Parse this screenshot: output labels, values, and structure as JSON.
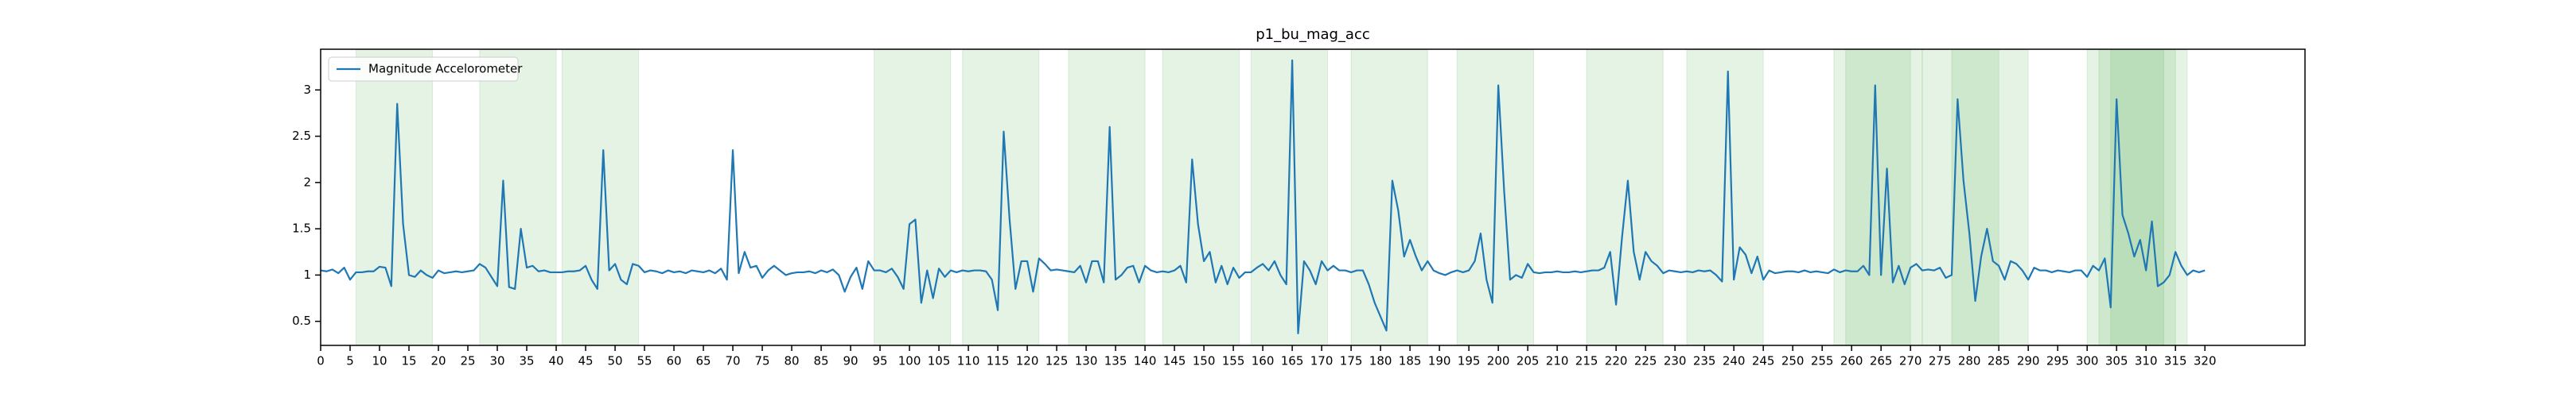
{
  "chart_data": {
    "type": "line",
    "title": "p1_bu_mag_acc",
    "x": [
      0,
      1,
      2,
      3,
      4,
      5,
      6,
      7,
      8,
      9,
      10,
      11,
      12,
      13,
      14,
      15,
      16,
      17,
      18,
      19,
      20,
      21,
      22,
      23,
      24,
      25,
      26,
      27,
      28,
      29,
      30,
      31,
      32,
      33,
      34,
      35,
      36,
      37,
      38,
      39,
      40,
      41,
      42,
      43,
      44,
      45,
      46,
      47,
      48,
      49,
      50,
      51,
      52,
      53,
      54,
      55,
      56,
      57,
      58,
      59,
      60,
      61,
      62,
      63,
      64,
      65,
      66,
      67,
      68,
      69,
      70,
      71,
      72,
      73,
      74,
      75,
      76,
      77,
      78,
      79,
      80,
      81,
      82,
      83,
      84,
      85,
      86,
      87,
      88,
      89,
      90,
      91,
      92,
      93,
      94,
      95,
      96,
      97,
      98,
      99,
      100,
      101,
      102,
      103,
      104,
      105,
      106,
      107,
      108,
      109,
      110,
      111,
      112,
      113,
      114,
      115,
      116,
      117,
      118,
      119,
      120,
      121,
      122,
      123,
      124,
      125,
      126,
      127,
      128,
      129,
      130,
      131,
      132,
      133,
      134,
      135,
      136,
      137,
      138,
      139,
      140,
      141,
      142,
      143,
      144,
      145,
      146,
      147,
      148,
      149,
      150,
      151,
      152,
      153,
      154,
      155,
      156,
      157,
      158,
      159,
      160,
      161,
      162,
      163,
      164,
      165,
      166,
      167,
      168,
      169,
      170,
      171,
      172,
      173,
      174,
      175,
      176,
      177,
      178,
      179,
      180,
      181,
      182,
      183,
      184,
      185,
      186,
      187,
      188,
      189,
      190,
      191,
      192,
      193,
      194,
      195,
      196,
      197,
      198,
      199,
      200,
      201,
      202,
      203,
      204,
      205,
      206,
      207,
      208,
      209,
      210,
      211,
      212,
      213,
      214,
      215,
      216,
      217,
      218,
      219,
      220,
      221,
      222,
      223,
      224,
      225,
      226,
      227,
      228,
      229,
      230,
      231,
      232,
      233,
      234,
      235,
      236,
      237,
      238,
      239,
      240,
      241,
      242,
      243,
      244,
      245,
      246,
      247,
      248,
      249,
      250,
      251,
      252,
      253,
      254,
      255,
      256,
      257,
      258,
      259,
      260,
      261,
      262,
      263,
      264,
      265,
      266,
      267,
      268,
      269,
      270,
      271,
      272,
      273,
      274,
      275,
      276,
      277,
      278,
      279,
      280,
      281,
      282,
      283,
      284,
      285,
      286,
      287,
      288,
      289,
      290,
      291,
      292,
      293,
      294,
      295,
      296,
      297,
      298,
      299,
      300,
      301,
      302,
      303,
      304,
      305,
      306,
      307,
      308,
      309,
      310,
      311,
      312,
      313,
      314,
      315,
      316,
      317,
      318,
      319,
      320
    ],
    "series": [
      {
        "name": "Magnitude Accelorometer",
        "color": "#1f77b4",
        "values": [
          1.05,
          1.04,
          1.06,
          1.02,
          1.08,
          0.95,
          1.03,
          1.03,
          1.04,
          1.04,
          1.09,
          1.08,
          0.88,
          2.85,
          1.55,
          1.0,
          0.98,
          1.05,
          1.0,
          0.97,
          1.05,
          1.02,
          1.03,
          1.04,
          1.03,
          1.04,
          1.05,
          1.12,
          1.08,
          0.98,
          0.88,
          2.02,
          0.87,
          0.85,
          1.5,
          1.08,
          1.1,
          1.04,
          1.05,
          1.03,
          1.03,
          1.03,
          1.04,
          1.04,
          1.05,
          1.1,
          0.95,
          0.85,
          2.35,
          1.05,
          1.12,
          0.95,
          0.9,
          1.12,
          1.1,
          1.03,
          1.05,
          1.04,
          1.02,
          1.05,
          1.03,
          1.04,
          1.02,
          1.05,
          1.04,
          1.03,
          1.05,
          1.02,
          1.07,
          0.95,
          2.35,
          1.02,
          1.25,
          1.08,
          1.1,
          0.97,
          1.05,
          1.1,
          1.05,
          1.0,
          1.02,
          1.03,
          1.03,
          1.04,
          1.02,
          1.05,
          1.03,
          1.06,
          1.0,
          0.82,
          0.98,
          1.08,
          0.85,
          1.15,
          1.05,
          1.05,
          1.03,
          1.07,
          0.98,
          0.85,
          1.55,
          1.6,
          0.7,
          1.05,
          0.75,
          1.07,
          0.98,
          1.05,
          1.03,
          1.05,
          1.04,
          1.05,
          1.05,
          1.04,
          0.95,
          0.62,
          2.55,
          1.6,
          0.85,
          1.15,
          1.15,
          0.82,
          1.18,
          1.12,
          1.05,
          1.06,
          1.05,
          1.04,
          1.03,
          1.1,
          0.92,
          1.15,
          1.15,
          0.92,
          2.6,
          0.95,
          1.0,
          1.08,
          1.1,
          0.92,
          1.1,
          1.05,
          1.03,
          1.04,
          1.03,
          1.05,
          1.1,
          0.92,
          2.25,
          1.55,
          1.15,
          1.25,
          0.92,
          1.1,
          0.9,
          1.08,
          0.97,
          1.03,
          1.03,
          1.08,
          1.12,
          1.05,
          1.15,
          1.0,
          0.9,
          3.32,
          0.37,
          1.15,
          1.05,
          0.9,
          1.15,
          1.05,
          1.1,
          1.05,
          1.05,
          1.03,
          1.05,
          1.05,
          0.9,
          0.7,
          0.55,
          0.4,
          2.02,
          1.7,
          1.2,
          1.38,
          1.2,
          1.05,
          1.15,
          1.05,
          1.02,
          1.0,
          1.03,
          1.05,
          1.03,
          1.05,
          1.15,
          1.45,
          0.95,
          0.7,
          3.05,
          1.9,
          0.95,
          1.0,
          0.97,
          1.12,
          1.03,
          1.02,
          1.03,
          1.03,
          1.04,
          1.03,
          1.03,
          1.04,
          1.03,
          1.04,
          1.05,
          1.05,
          1.08,
          1.25,
          0.68,
          1.4,
          2.02,
          1.25,
          0.95,
          1.25,
          1.15,
          1.1,
          1.02,
          1.05,
          1.04,
          1.03,
          1.04,
          1.03,
          1.05,
          1.04,
          1.05,
          1.0,
          0.93,
          3.2,
          0.95,
          1.3,
          1.22,
          1.02,
          1.2,
          0.95,
          1.05,
          1.02,
          1.03,
          1.04,
          1.04,
          1.03,
          1.05,
          1.03,
          1.04,
          1.03,
          1.02,
          1.06,
          1.03,
          1.05,
          1.04,
          1.04,
          1.1,
          1.0,
          3.05,
          1.0,
          2.15,
          0.92,
          1.1,
          0.9,
          1.08,
          1.12,
          1.05,
          1.06,
          1.05,
          1.08,
          0.97,
          1.0,
          2.9,
          2.02,
          1.45,
          0.72,
          1.2,
          1.5,
          1.15,
          1.1,
          0.95,
          1.15,
          1.12,
          1.05,
          0.95,
          1.08,
          1.05,
          1.05,
          1.03,
          1.05,
          1.04,
          1.03,
          1.05,
          1.05,
          0.98,
          1.1,
          1.05,
          1.18,
          0.65,
          2.9,
          1.65,
          1.45,
          1.2,
          1.38,
          1.05,
          1.58,
          0.88,
          0.92,
          1.0,
          1.25,
          1.1,
          1.0,
          1.05,
          1.03,
          1.05
        ]
      }
    ],
    "shaded_regions": [
      [
        6,
        19
      ],
      [
        27,
        40
      ],
      [
        41,
        54
      ],
      [
        94,
        107
      ],
      [
        109,
        122
      ],
      [
        127,
        140
      ],
      [
        143,
        156
      ],
      [
        158,
        171
      ],
      [
        175,
        188
      ],
      [
        193,
        206
      ],
      [
        215,
        228
      ],
      [
        232,
        245
      ],
      [
        257,
        270
      ],
      [
        259,
        272
      ],
      [
        272,
        285
      ],
      [
        277,
        290
      ],
      [
        300,
        313
      ],
      [
        302,
        315
      ],
      [
        304,
        317
      ]
    ],
    "region_color": "#2ca02c",
    "xlim": [
      0,
      337
    ],
    "xticks": [
      0,
      5,
      10,
      15,
      20,
      25,
      30,
      35,
      40,
      45,
      50,
      55,
      60,
      65,
      70,
      75,
      80,
      85,
      90,
      95,
      100,
      105,
      110,
      115,
      120,
      125,
      130,
      135,
      140,
      145,
      150,
      155,
      160,
      165,
      170,
      175,
      180,
      185,
      190,
      195,
      200,
      205,
      210,
      215,
      220,
      225,
      230,
      235,
      240,
      245,
      250,
      255,
      260,
      265,
      270,
      275,
      280,
      285,
      290,
      295,
      300,
      305,
      310,
      315,
      320
    ],
    "ylim": [
      0.24,
      3.44
    ],
    "yticks": [
      0.5,
      1.0,
      1.5,
      2.0,
      2.5,
      3.0
    ],
    "legend": "upper left"
  }
}
